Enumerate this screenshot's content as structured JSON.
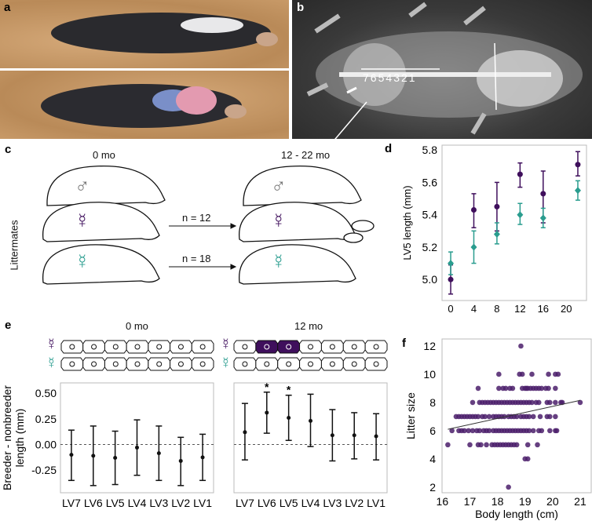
{
  "panels": {
    "a": {
      "label": "a"
    },
    "b": {
      "label": "b",
      "vertebra_numbers": [
        "7",
        "6",
        "5",
        "4",
        "3",
        "2",
        "1"
      ]
    },
    "c": {
      "label": "c",
      "time_start": "0 mo",
      "time_end": "12 - 22 mo",
      "n_breeder": "n = 12",
      "n_nonbreeder": "n = 18",
      "side_label": "Littermates",
      "symbols": {
        "male": "♂",
        "female": "☿",
        "breeder_female": "☿"
      }
    },
    "e_schematic": {
      "time_start": "0 mo",
      "time_end": "12 mo",
      "symbol_breeder": "☿",
      "symbol_nonbreeder": "☿"
    }
  },
  "colors": {
    "breeder": "#3f0f5c",
    "breeder_light": "#7a5a95",
    "nonbreeder": "#2a9d8f",
    "male": "#777777",
    "sand": "#c99b68"
  },
  "chart_data": [
    {
      "id": "d",
      "label": "d",
      "type": "scatter",
      "xlabel": "Months of treatment",
      "ylabel": "LV5 length (mm)",
      "xlim": [
        -1.5,
        23.5
      ],
      "ylim": [
        4.87,
        5.83
      ],
      "xticks": [
        0,
        4,
        8,
        12,
        16,
        20
      ],
      "yticks": [
        5.0,
        5.2,
        5.4,
        5.6,
        5.8
      ],
      "grid": false,
      "series": [
        {
          "color": "#3f0f5c",
          "marker": "circle",
          "x": [
            0,
            4,
            8,
            12,
            16,
            22
          ],
          "y": [
            5.0,
            5.43,
            5.45,
            5.65,
            5.53,
            5.71
          ],
          "lo": [
            4.91,
            5.32,
            5.3,
            5.57,
            5.35,
            5.64
          ],
          "hi": [
            5.09,
            5.53,
            5.6,
            5.72,
            5.67,
            5.79
          ]
        },
        {
          "color": "#2a9d8f",
          "marker": "diamond",
          "x": [
            0,
            4,
            8,
            12,
            16,
            22
          ],
          "y": [
            5.1,
            5.2,
            5.28,
            5.4,
            5.38,
            5.55
          ],
          "lo": [
            5.03,
            5.1,
            5.22,
            5.34,
            5.32,
            5.49
          ],
          "hi": [
            5.17,
            5.3,
            5.35,
            5.47,
            5.44,
            5.61
          ]
        }
      ]
    },
    {
      "id": "e-left",
      "label": "e",
      "type": "scatter",
      "ylabel": "Breeder - nonbreeder length (mm)",
      "ylabel_lines": [
        "Breeder - nonbreeder",
        "length (mm)"
      ],
      "categories": [
        "LV7",
        "LV6",
        "LV5",
        "LV4",
        "LV3",
        "LV2",
        "LV1"
      ],
      "ylim": [
        -0.47,
        0.6
      ],
      "yticks": [
        "0.50",
        "0.25",
        "0.00",
        "-0.25"
      ],
      "ytick_values": [
        0.5,
        0.25,
        0,
        -0.25
      ],
      "reference_line": 0,
      "values": [
        -0.1,
        -0.11,
        -0.13,
        -0.03,
        -0.085,
        -0.16,
        -0.125
      ],
      "lo": [
        -0.35,
        -0.4,
        -0.39,
        -0.3,
        -0.35,
        -0.4,
        -0.35
      ],
      "hi": [
        0.14,
        0.18,
        0.13,
        0.24,
        0.18,
        0.07,
        0.1
      ],
      "significant": [
        false,
        false,
        false,
        false,
        false,
        false,
        false
      ]
    },
    {
      "id": "e-right",
      "type": "scatter",
      "categories": [
        "LV7",
        "LV6",
        "LV5",
        "LV4",
        "LV3",
        "LV2",
        "LV1"
      ],
      "ylim": [
        -0.47,
        0.6
      ],
      "reference_line": 0,
      "values": [
        0.12,
        0.31,
        0.26,
        0.23,
        0.09,
        0.09,
        0.08
      ],
      "lo": [
        -0.15,
        0.11,
        0.04,
        -0.02,
        -0.16,
        -0.14,
        -0.15
      ],
      "hi": [
        0.4,
        0.51,
        0.48,
        0.49,
        0.34,
        0.31,
        0.3
      ],
      "significant": [
        false,
        true,
        true,
        false,
        false,
        false,
        false
      ],
      "sig_mark": "*"
    },
    {
      "id": "f",
      "label": "f",
      "type": "scatter",
      "xlabel": "Body length (cm)",
      "ylabel": "Litter size",
      "xlim": [
        15.99,
        21.4
      ],
      "ylim": [
        1.6,
        12.5
      ],
      "xticks": [
        16,
        17,
        18,
        19,
        20,
        21
      ],
      "yticks": [
        12,
        10,
        8,
        6,
        4,
        2
      ],
      "color": "#4b1f6b",
      "trend_line": {
        "x": [
          16.2,
          21.0
        ],
        "y": [
          6.1,
          8.15
        ]
      },
      "rows": [
        {
          "y": 12,
          "x": [
            18.85
          ]
        },
        {
          "y": 10,
          "x": [
            18.05,
            18.8,
            18.9,
            19.25,
            19.85,
            20.1,
            20.2
          ]
        },
        {
          "y": 9,
          "x": [
            17.3,
            18.05,
            18.2,
            18.3,
            18.45,
            18.55,
            18.9,
            19.0,
            19.05,
            19.1,
            19.2,
            19.3,
            19.4,
            19.5,
            19.6,
            19.75,
            19.85,
            20.1
          ]
        },
        {
          "y": 8,
          "x": [
            17.1,
            17.35,
            17.45,
            17.55,
            17.65,
            17.75,
            17.85,
            17.95,
            18.05,
            18.15,
            18.25,
            18.35,
            18.45,
            18.55,
            18.65,
            18.75,
            18.85,
            18.95,
            19.05,
            19.15,
            19.25,
            19.4,
            19.5,
            19.8,
            19.9,
            20.1,
            20.3,
            20.35,
            21.0
          ]
        },
        {
          "y": 7,
          "x": [
            16.5,
            16.6,
            16.7,
            16.8,
            16.9,
            17.0,
            17.1,
            17.2,
            17.3,
            17.45,
            17.55,
            17.7,
            17.85,
            17.95,
            18.05,
            18.15,
            18.25,
            18.4,
            18.5,
            18.6,
            18.7,
            18.85,
            18.95,
            19.05,
            19.15,
            19.3,
            19.55,
            19.8,
            19.9,
            20.1
          ]
        },
        {
          "y": 6,
          "x": [
            16.35,
            16.6,
            16.7,
            16.8,
            16.95,
            17.1,
            17.25,
            17.35,
            17.5,
            17.6,
            17.7,
            17.85,
            17.95,
            18.05,
            18.15,
            18.25,
            18.35,
            18.45,
            18.55,
            18.65,
            18.75,
            18.85,
            18.95,
            19.05,
            19.15,
            19.3,
            19.5,
            19.6,
            19.9,
            20.1,
            20.15
          ]
        },
        {
          "y": 5,
          "x": [
            16.2,
            17.0,
            17.3,
            17.4,
            17.6,
            17.8,
            17.9,
            18.0,
            18.1,
            18.2,
            18.3,
            18.4,
            18.5,
            18.6,
            18.7,
            19.1,
            19.45
          ]
        },
        {
          "y": 4,
          "x": [
            19.0,
            19.1
          ]
        },
        {
          "y": 2,
          "x": [
            18.4
          ]
        }
      ]
    }
  ]
}
